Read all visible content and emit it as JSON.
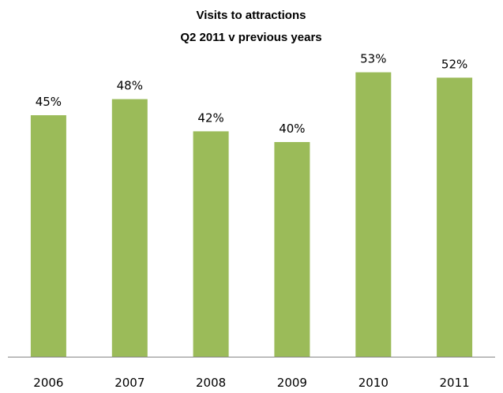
{
  "chart_data": {
    "type": "bar",
    "title": "Visits to attractions",
    "subtitle": "Q2 2011 v previous years",
    "categories": [
      "2006",
      "2007",
      "2008",
      "2009",
      "2010",
      "2011"
    ],
    "values": [
      45,
      48,
      42,
      40,
      53,
      52
    ],
    "data_labels": [
      "45%",
      "48%",
      "42%",
      "40%",
      "53%",
      "52%"
    ],
    "unit": "%",
    "ylim": [
      0,
      60
    ],
    "grid": false,
    "legend": "none",
    "colors": {
      "bar": "#9bbb59",
      "axis": "#868686",
      "text": "#000000"
    }
  }
}
